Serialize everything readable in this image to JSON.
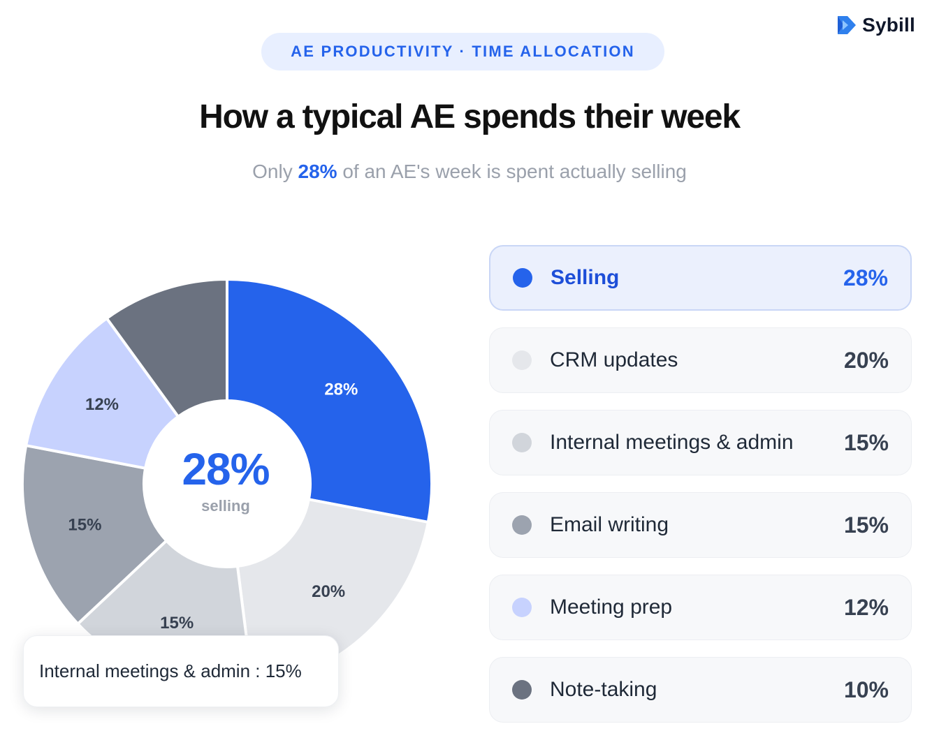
{
  "brand": {
    "name": "Sybill",
    "logo_icon": "sybill-logo-icon"
  },
  "header": {
    "eyebrow": "AE PRODUCTIVITY · TIME ALLOCATION",
    "title": "How a typical AE spends their week",
    "subtitle_prefix": "Only ",
    "subtitle_highlight": "28%",
    "subtitle_suffix": " of an AE's week is spent actually selling"
  },
  "center": {
    "value": "28%",
    "caption": "selling"
  },
  "tooltip": {
    "text": "Internal meetings & admin : 15%"
  },
  "colors": {
    "accent": "#2563eb",
    "selling": "#2563eb",
    "crm": "#e5e7eb",
    "internal": "#d1d5db",
    "email": "#9ca3af",
    "prep": "#c7d2fe",
    "notes": "#6b7280"
  },
  "chart_data": {
    "type": "pie",
    "style": "donut",
    "categories": [
      "Selling",
      "CRM updates",
      "Internal meetings & admin",
      "Email writing",
      "Meeting prep",
      "Note-taking"
    ],
    "values": [
      28,
      20,
      15,
      15,
      12,
      10
    ],
    "unit": "%",
    "colors": [
      "#2563eb",
      "#e5e7eb",
      "#d1d5db",
      "#9ca3af",
      "#c7d2fe",
      "#6b7280"
    ],
    "slice_labels": [
      "28%",
      "20%",
      "15%",
      "15%",
      "12%",
      ""
    ],
    "highlighted": "Selling",
    "hovered": "Internal meetings & admin",
    "legend_position": "right"
  },
  "legend": [
    {
      "label": "Selling",
      "value": "28%",
      "color": "#2563eb",
      "active": true
    },
    {
      "label": "CRM updates",
      "value": "20%",
      "color": "#e5e7eb",
      "active": false
    },
    {
      "label": "Internal meetings & admin",
      "value": "15%",
      "color": "#d1d5db",
      "active": false
    },
    {
      "label": "Email writing",
      "value": "15%",
      "color": "#9ca3af",
      "active": false
    },
    {
      "label": "Meeting prep",
      "value": "12%",
      "color": "#c7d2fe",
      "active": false
    },
    {
      "label": "Note-taking",
      "value": "10%",
      "color": "#6b7280",
      "active": false
    }
  ]
}
